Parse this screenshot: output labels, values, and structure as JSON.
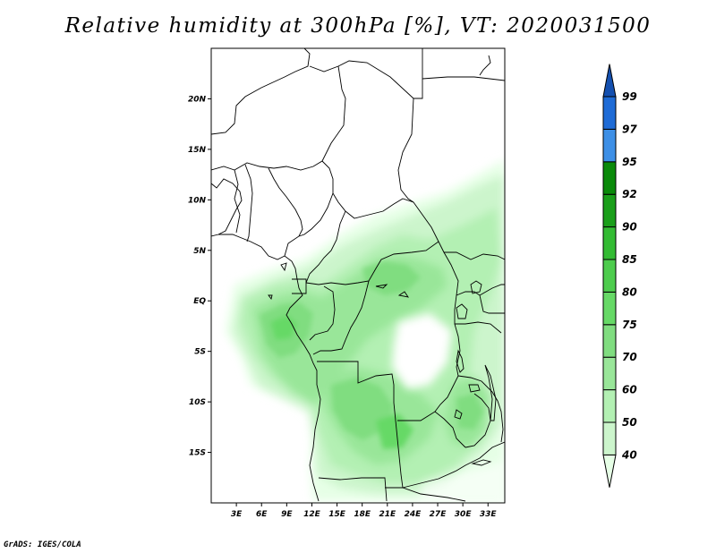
{
  "title": "Relative humidity at 300hPa [%], VT: 2020031500",
  "credit": "GrADS: IGES/COLA",
  "map": {
    "lon_range": [
      0,
      35
    ],
    "lat_range": [
      -20,
      25
    ],
    "lat_ticks": [
      {
        "value": 20,
        "label": "20N"
      },
      {
        "value": 15,
        "label": "15N"
      },
      {
        "value": 10,
        "label": "10N"
      },
      {
        "value": 5,
        "label": "5N"
      },
      {
        "value": 0,
        "label": "EQ"
      },
      {
        "value": -5,
        "label": "5S"
      },
      {
        "value": -10,
        "label": "10S"
      },
      {
        "value": -15,
        "label": "15S"
      }
    ],
    "lon_ticks": [
      {
        "value": 3,
        "label": "3E"
      },
      {
        "value": 6,
        "label": "6E"
      },
      {
        "value": 9,
        "label": "9E"
      },
      {
        "value": 12,
        "label": "12E"
      },
      {
        "value": 15,
        "label": "15E"
      },
      {
        "value": 18,
        "label": "18E"
      },
      {
        "value": 21,
        "label": "21E"
      },
      {
        "value": 24,
        "label": "24E"
      },
      {
        "value": 27,
        "label": "27E"
      },
      {
        "value": 30,
        "label": "30E"
      },
      {
        "value": 33,
        "label": "33E"
      }
    ]
  },
  "colorbar": {
    "levels": [
      "40",
      "50",
      "60",
      "70",
      "75",
      "80",
      "85",
      "90",
      "92",
      "95",
      "97",
      "99"
    ],
    "colors": [
      "#e6ffe6",
      "#ccf5cc",
      "#b3f0b3",
      "#99e699",
      "#80dd80",
      "#66d966",
      "#4dcc4d",
      "#33bb33",
      "#1a9f1a",
      "#0a8a0a",
      "#3d8fe6",
      "#1e6bd6",
      "#1450b0"
    ]
  }
}
